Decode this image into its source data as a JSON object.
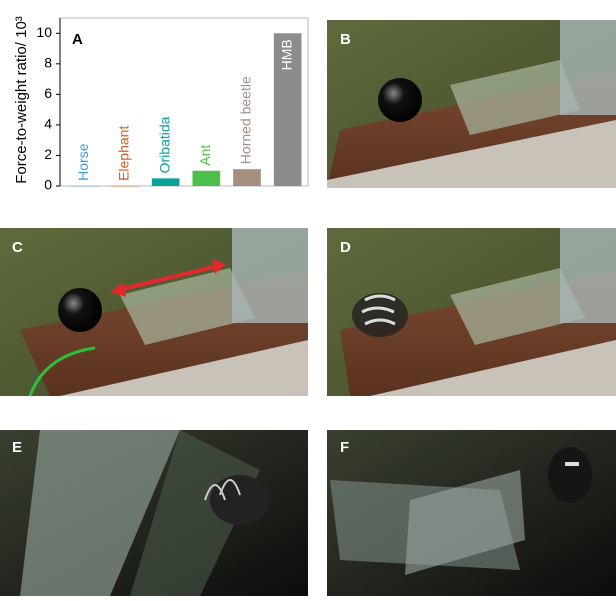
{
  "chart_data": {
    "type": "bar",
    "label": "A",
    "ylabel": "Force-to-weight ratio/ 10³",
    "categories": [
      "Horse",
      "Elephant",
      "Oribatida",
      "Ant",
      "Horned beetle",
      "HMB"
    ],
    "values": [
      0.01,
      0.005,
      0.5,
      1.0,
      1.1,
      10
    ],
    "colors": [
      "#3a9fd6",
      "#d0622a",
      "#0aa39a",
      "#4cbf4a",
      "#a58f80",
      "#8c8c8c"
    ],
    "ylim": [
      0,
      11
    ],
    "yticks": [
      0,
      2,
      4,
      6,
      8,
      10
    ]
  },
  "panels": {
    "labels": [
      "B",
      "C",
      "D",
      "E",
      "F"
    ]
  }
}
